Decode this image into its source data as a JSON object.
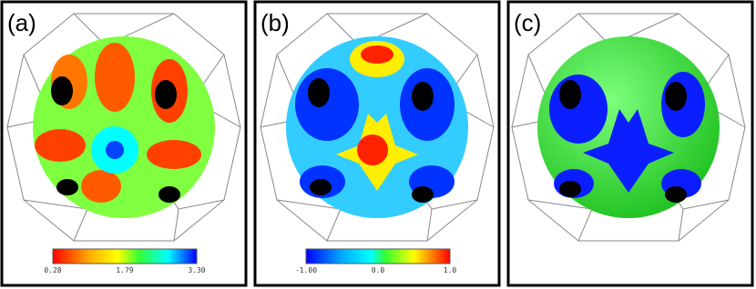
{
  "panels": [
    {
      "label": "(a)",
      "colorbar": {
        "ticks": [
          "0.28",
          "1.79",
          "3.30"
        ]
      }
    },
    {
      "label": "(b)",
      "colorbar": {
        "ticks": [
          "-1.00",
          "0.0",
          "1.0"
        ]
      }
    },
    {
      "label": "(c)"
    }
  ]
}
